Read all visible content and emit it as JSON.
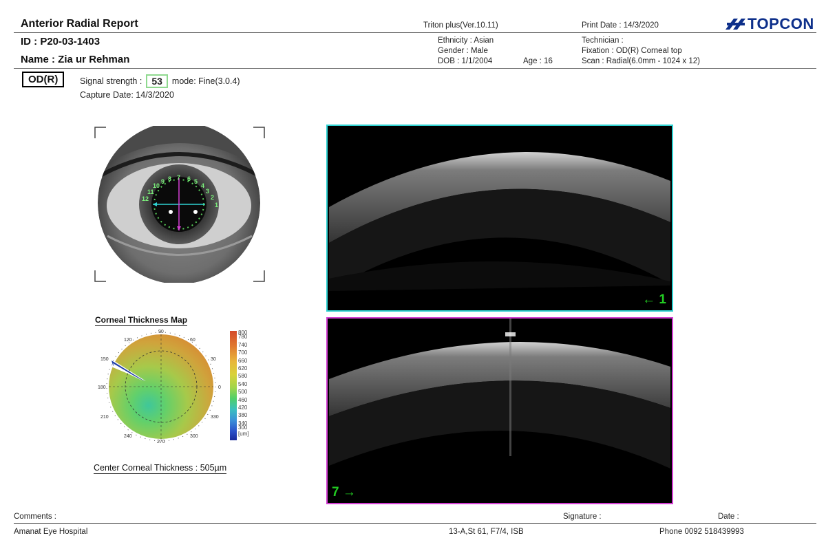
{
  "header": {
    "report_title": "Anterior Radial Report",
    "patient_id": "ID : P20-03-1403",
    "patient_name": "Name : Zia ur Rehman",
    "device": "Triton plus(Ver.10.11)",
    "ethnicity": "Ethnicity : Asian",
    "gender": "Gender : Male",
    "dob": "DOB : 1/1/2004",
    "age": "Age : 16",
    "print_date": "Print Date : 14/3/2020",
    "technician": "Technician :",
    "fixation": "Fixation : OD(R) Corneal top",
    "scan": "Scan : Radial(6.0mm - 1024 x 12)",
    "brand": "TOPCON"
  },
  "exam": {
    "eye": "OD(R)",
    "signal_label": "Signal strength :",
    "signal_value": "53",
    "mode": "mode: Fine(3.0.4)",
    "capture_date": "Capture Date: 14/3/2020"
  },
  "fundus": {
    "radial_lines": [
      "1",
      "2",
      "3",
      "4",
      "5",
      "6",
      "7",
      "8",
      "9",
      "10",
      "11",
      "12"
    ]
  },
  "thickness_map": {
    "title": "Corneal Thickness Map",
    "angles": [
      "90",
      "60",
      "30",
      "0",
      "330",
      "300",
      "270",
      "240",
      "210",
      "180",
      "150",
      "120"
    ],
    "scale": [
      "800",
      "780",
      "740",
      "700",
      "660",
      "620",
      "580",
      "540",
      "500",
      "460",
      "420",
      "380",
      "340",
      "300"
    ],
    "unit": "[um]",
    "center_thickness": "Center Corneal Thickness : 505µm"
  },
  "scans": [
    {
      "label": "1",
      "arrow": "←",
      "border_color": "#2fd3d3"
    },
    {
      "label": "7",
      "arrow": "→",
      "border_color": "#d43fd4"
    }
  ],
  "footer": {
    "comments": "Comments :",
    "signature": "Signature :",
    "date": "Date :",
    "hospital": "Amanat Eye Hospital",
    "address": "13-A,St 61, F7/4, ISB",
    "phone": "Phone 0092 518439993"
  },
  "colors": {
    "accent_green": "#22cc22",
    "cyan": "#2fd3d3",
    "magenta": "#d43fd4",
    "brand_blue": "#0d2f8a"
  }
}
